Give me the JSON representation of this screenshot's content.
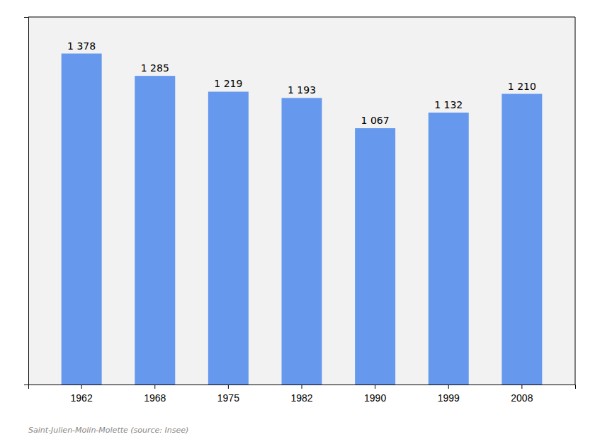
{
  "chart_data": {
    "type": "bar",
    "subtitle": "Saint-Julien-Molin-Molette    (source: Insee)",
    "categories": [
      "1962",
      "1968",
      "1975",
      "1982",
      "1990",
      "1999",
      "2008"
    ],
    "values": [
      1378,
      1285,
      1219,
      1193,
      1067,
      1132,
      1210
    ],
    "value_labels": [
      "1 378",
      "1 285",
      "1 219",
      "1 193",
      "1 067",
      "1 132",
      "1 210"
    ],
    "data_labels": true,
    "color": "#6699ee",
    "ylim": [
      0,
      1530
    ],
    "tick_labels": "x",
    "grid": false
  }
}
